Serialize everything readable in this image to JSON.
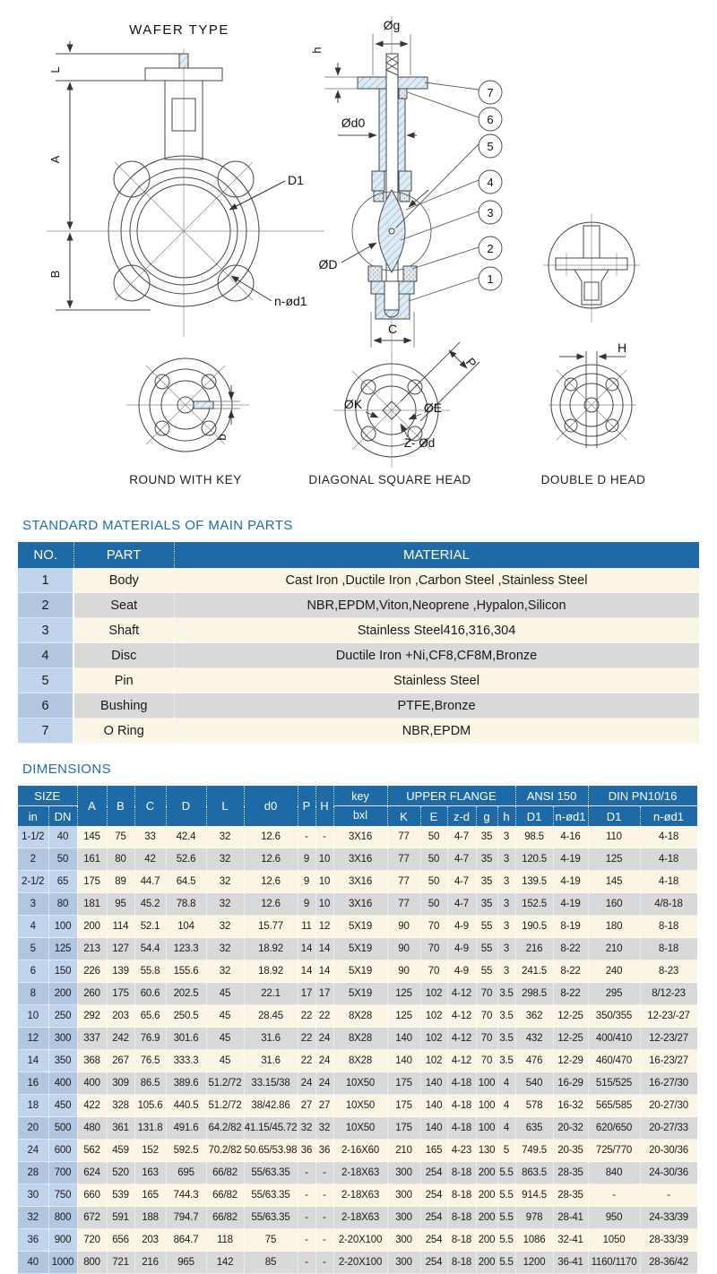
{
  "drawings": {
    "front": {
      "title": "WAFER TYPE",
      "dims": {
        "l": "L",
        "a": "A",
        "b": "B",
        "d1": "D1",
        "n_od1": "n-ød1"
      }
    },
    "section": {
      "dims": {
        "og": "Øg",
        "h": "h",
        "od0": "Ød0",
        "od": "ØD",
        "c": "C"
      }
    },
    "callouts": [
      "7",
      "6",
      "5",
      "4",
      "3",
      "2",
      "1"
    ],
    "heads": {
      "round": {
        "label": "ROUND WITH KEY",
        "b": "b"
      },
      "diagonal": {
        "label": "DIAGONAL SQUARE HEAD",
        "ok": "ØK",
        "oe": "ØE",
        "zod": "Z- Ød",
        "p": "P"
      },
      "double_d": {
        "label": "DOUBLE D HEAD",
        "h": "H"
      }
    }
  },
  "materials": {
    "title": "STANDARD MATERIALS OF MAIN PARTS",
    "headers": {
      "no": "NO.",
      "part": "PART",
      "material": "MATERIAL"
    },
    "rows": [
      {
        "no": "1",
        "part": "Body",
        "material": "Cast Iron ,Ductile Iron ,Carbon Steel ,Stainless Steel"
      },
      {
        "no": "2",
        "part": "Seat",
        "material": "NBR,EPDM,Viton,Neoprene ,Hypalon,Silicon"
      },
      {
        "no": "3",
        "part": "Shaft",
        "material": "Stainless Steel416,316,304"
      },
      {
        "no": "4",
        "part": "Disc",
        "material": "Ductile Iron +Ni,CF8,CF8M,Bronze"
      },
      {
        "no": "5",
        "part": "Pin",
        "material": "Stainless Steel"
      },
      {
        "no": "6",
        "part": "Bushing",
        "material": "PTFE,Bronze"
      },
      {
        "no": "7",
        "part": "O Ring",
        "material": "NBR,EPDM"
      }
    ]
  },
  "dimensions": {
    "title": "DIMENSIONS",
    "header": {
      "size_label": "SIZE",
      "sub_in": "in",
      "sub_dn": "DN",
      "span_cols": [
        "A",
        "B",
        "C",
        "D",
        "L",
        "d0",
        "P",
        "H"
      ],
      "key_label": "key",
      "key_sub": "bxl",
      "upper_flange_label": "UPPER FLANGE",
      "upper_subs": [
        "K",
        "E",
        "z-d",
        "g",
        "h"
      ],
      "ansi_label": "ANSI 150",
      "ansi_subs": [
        "D1",
        "n-ød1"
      ],
      "din_label": "DIN PN10/16",
      "din_subs": [
        "D1",
        "n-ød1"
      ]
    },
    "rows": [
      [
        "1-1/2",
        "40",
        "145",
        "75",
        "33",
        "42.4",
        "32",
        "12.6",
        "-",
        "-",
        "3X16",
        "77",
        "50",
        "4-7",
        "35",
        "3",
        "98.5",
        "4-16",
        "110",
        "4-18"
      ],
      [
        "2",
        "50",
        "161",
        "80",
        "42",
        "52.6",
        "32",
        "12.6",
        "9",
        "10",
        "3X16",
        "77",
        "50",
        "4-7",
        "35",
        "3",
        "120.5",
        "4-19",
        "125",
        "4-18"
      ],
      [
        "2-1/2",
        "65",
        "175",
        "89",
        "44.7",
        "64.5",
        "32",
        "12.6",
        "9",
        "10",
        "3X16",
        "77",
        "50",
        "4-7",
        "35",
        "3",
        "139.5",
        "4-19",
        "145",
        "4-18"
      ],
      [
        "3",
        "80",
        "181",
        "95",
        "45.2",
        "78.8",
        "32",
        "12.6",
        "9",
        "10",
        "3X16",
        "77",
        "50",
        "4-7",
        "35",
        "3",
        "152.5",
        "4-19",
        "160",
        "4/8-18"
      ],
      [
        "4",
        "100",
        "200",
        "114",
        "52.1",
        "104",
        "32",
        "15.77",
        "11",
        "12",
        "5X19",
        "90",
        "70",
        "4-9",
        "55",
        "3",
        "190.5",
        "8-19",
        "180",
        "8-18"
      ],
      [
        "5",
        "125",
        "213",
        "127",
        "54.4",
        "123.3",
        "32",
        "18.92",
        "14",
        "14",
        "5X19",
        "90",
        "70",
        "4-9",
        "55",
        "3",
        "216",
        "8-22",
        "210",
        "8-18"
      ],
      [
        "6",
        "150",
        "226",
        "139",
        "55.8",
        "155.6",
        "32",
        "18.92",
        "14",
        "14",
        "5X19",
        "90",
        "70",
        "4-9",
        "55",
        "3",
        "241.5",
        "8-22",
        "240",
        "8-23"
      ],
      [
        "8",
        "200",
        "260",
        "175",
        "60.6",
        "202.5",
        "45",
        "22.1",
        "17",
        "17",
        "5X19",
        "125",
        "102",
        "4-12",
        "70",
        "3.5",
        "298.5",
        "8-22",
        "295",
        "8/12-23"
      ],
      [
        "10",
        "250",
        "292",
        "203",
        "65.6",
        "250.5",
        "45",
        "28.45",
        "22",
        "22",
        "8X28",
        "125",
        "102",
        "4-12",
        "70",
        "3.5",
        "362",
        "12-25",
        "350/355",
        "12-23/-27"
      ],
      [
        "12",
        "300",
        "337",
        "242",
        "76.9",
        "301.6",
        "45",
        "31.6",
        "22",
        "24",
        "8X28",
        "140",
        "102",
        "4-12",
        "70",
        "3.5",
        "432",
        "12-25",
        "400/410",
        "12-23/27"
      ],
      [
        "14",
        "350",
        "368",
        "267",
        "76.5",
        "333.3",
        "45",
        "31.6",
        "22",
        "24",
        "8X28",
        "140",
        "102",
        "4-12",
        "70",
        "3.5",
        "476",
        "12-29",
        "460/470",
        "16-23/27"
      ],
      [
        "16",
        "400",
        "400",
        "309",
        "86.5",
        "389.6",
        "51.2/72",
        "33.15/38",
        "24",
        "24",
        "10X50",
        "175",
        "140",
        "4-18",
        "100",
        "4",
        "540",
        "16-29",
        "515/525",
        "16-27/30"
      ],
      [
        "18",
        "450",
        "422",
        "328",
        "105.6",
        "440.5",
        "51.2/72",
        "38/42.86",
        "27",
        "27",
        "10X50",
        "175",
        "140",
        "4-18",
        "100",
        "4",
        "578",
        "16-32",
        "565/585",
        "20-27/30"
      ],
      [
        "20",
        "500",
        "480",
        "361",
        "131.8",
        "491.6",
        "64.2/82",
        "41.15/45.72",
        "32",
        "32",
        "10X50",
        "175",
        "140",
        "4-18",
        "100",
        "4",
        "635",
        "20-32",
        "620/650",
        "20-27/33"
      ],
      [
        "24",
        "600",
        "562",
        "459",
        "152",
        "592.5",
        "70.2/82",
        "50.65/53.98",
        "36",
        "36",
        "2-16X60",
        "210",
        "165",
        "4-23",
        "130",
        "5",
        "749.5",
        "20-35",
        "725/770",
        "20-30/36"
      ],
      [
        "28",
        "700",
        "624",
        "520",
        "163",
        "695",
        "66/82",
        "55/63.35",
        "-",
        "-",
        "2-18X63",
        "300",
        "254",
        "8-18",
        "200",
        "5.5",
        "863.5",
        "28-35",
        "840",
        "24-30/36"
      ],
      [
        "30",
        "750",
        "660",
        "539",
        "165",
        "744.3",
        "66/82",
        "55/63.35",
        "-",
        "-",
        "2-18X63",
        "300",
        "254",
        "8-18",
        "200",
        "5.5",
        "914.5",
        "28-35",
        "-",
        "-"
      ],
      [
        "32",
        "800",
        "672",
        "591",
        "188",
        "794.7",
        "66/82",
        "55/63.35",
        "-",
        "-",
        "2-18X63",
        "300",
        "254",
        "8-18",
        "200",
        "5.5",
        "978",
        "28-41",
        "950",
        "24-33/39"
      ],
      [
        "36",
        "900",
        "720",
        "656",
        "203",
        "864.7",
        "118",
        "75",
        "-",
        "-",
        "2-20X100",
        "300",
        "254",
        "8-18",
        "200",
        "5.5",
        "1086",
        "32-41",
        "1050",
        "28-33/39"
      ],
      [
        "40",
        "1000",
        "800",
        "721",
        "216",
        "965",
        "142",
        "85",
        "-",
        "-",
        "2-20X100",
        "300",
        "254",
        "8-18",
        "200",
        "5.5",
        "1200",
        "36-41",
        "1160/1170",
        "28-36/42"
      ]
    ]
  }
}
